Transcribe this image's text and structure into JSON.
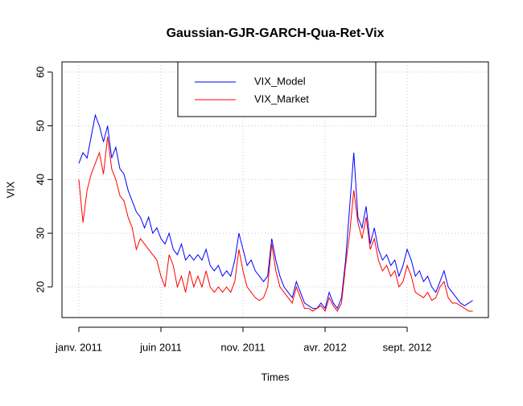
{
  "chart_data": {
    "type": "line",
    "title": "Gaussian-GJR-GARCH-Qua-Ret-Vix",
    "xlabel": "Times",
    "ylabel": "VIX",
    "x": [
      0,
      0.25,
      0.5,
      0.75,
      1,
      1.25,
      1.5,
      1.75,
      2,
      2.25,
      2.5,
      2.75,
      3,
      3.25,
      3.5,
      3.75,
      4,
      4.25,
      4.5,
      4.75,
      5,
      5.25,
      5.5,
      5.75,
      6,
      6.25,
      6.5,
      6.75,
      7,
      7.25,
      7.5,
      7.75,
      8,
      8.25,
      8.5,
      8.75,
      9,
      9.25,
      9.5,
      9.75,
      10,
      10.25,
      10.5,
      10.75,
      11,
      11.25,
      11.5,
      11.75,
      12,
      12.25,
      12.5,
      12.75,
      13,
      13.25,
      13.5,
      13.75,
      14,
      14.25,
      14.5,
      14.75,
      15,
      15.25,
      15.5,
      15.75,
      16,
      16.25,
      16.5,
      16.75,
      17,
      17.25,
      17.5,
      17.75,
      18,
      18.25,
      18.5,
      18.75,
      19,
      19.25,
      19.5,
      19.75,
      20,
      20.25,
      20.5,
      20.75,
      21,
      21.25,
      21.5,
      21.75,
      22,
      22.25,
      22.5,
      22.75,
      23,
      23.25,
      23.5,
      23.75,
      24
    ],
    "series": [
      {
        "name": "VIX_Model",
        "color": "#0000ff",
        "values": [
          43,
          45,
          44,
          48,
          52,
          50,
          47,
          50,
          44,
          46,
          42,
          41,
          38,
          36,
          34,
          33,
          31,
          33,
          30,
          31,
          29,
          28,
          30,
          27,
          26,
          28,
          25,
          26,
          25,
          26,
          25,
          27,
          24,
          23,
          24,
          22,
          23,
          22,
          25,
          30,
          27,
          24,
          25,
          23,
          22,
          21,
          22,
          29,
          25,
          22,
          20,
          19,
          18,
          21,
          19,
          17,
          16.5,
          16,
          16,
          17,
          16,
          19,
          17,
          16,
          18,
          25,
          35,
          45,
          33,
          31,
          35,
          28,
          31,
          27,
          25,
          26,
          24,
          25,
          22,
          24,
          27,
          25,
          22,
          23,
          21,
          22,
          20,
          19,
          21,
          23,
          20,
          19,
          18,
          17,
          16.5,
          17,
          17.5
        ]
      },
      {
        "name": "VIX_Market",
        "color": "#ff0000",
        "values": [
          40,
          32,
          38,
          41,
          43,
          45,
          41,
          48,
          42,
          40,
          37,
          36,
          33,
          31,
          27,
          29,
          28,
          27,
          26,
          25,
          22,
          20,
          26,
          24,
          20,
          22,
          19,
          23,
          20,
          22,
          20,
          23,
          20,
          19,
          20,
          19,
          20,
          19,
          21,
          27,
          23,
          20,
          19,
          18,
          17.5,
          18,
          20,
          28,
          23,
          20,
          19,
          18,
          17,
          20,
          18,
          16,
          16,
          15.5,
          16,
          16.5,
          15.5,
          18,
          16.5,
          15.5,
          17,
          24,
          30,
          38,
          32,
          29,
          33,
          27,
          29,
          25,
          23,
          24,
          22,
          23,
          20,
          21,
          24,
          22,
          19,
          18.5,
          18,
          19,
          17.5,
          18,
          20,
          21,
          18,
          17,
          17,
          16.5,
          16,
          15.5,
          15.5
        ]
      }
    ],
    "xlim": [
      -1.03,
      24.95
    ],
    "ylim": [
      14.3,
      61.9
    ],
    "xticks": [
      {
        "value": 0,
        "label": "janv. 2011"
      },
      {
        "value": 5,
        "label": "juin 2011"
      },
      {
        "value": 10,
        "label": "nov. 2011"
      },
      {
        "value": 15,
        "label": "avr. 2012"
      },
      {
        "value": 20,
        "label": "sept. 2012"
      }
    ],
    "yticks": [
      20,
      30,
      40,
      50,
      60
    ],
    "grid": true,
    "legend": "top"
  }
}
